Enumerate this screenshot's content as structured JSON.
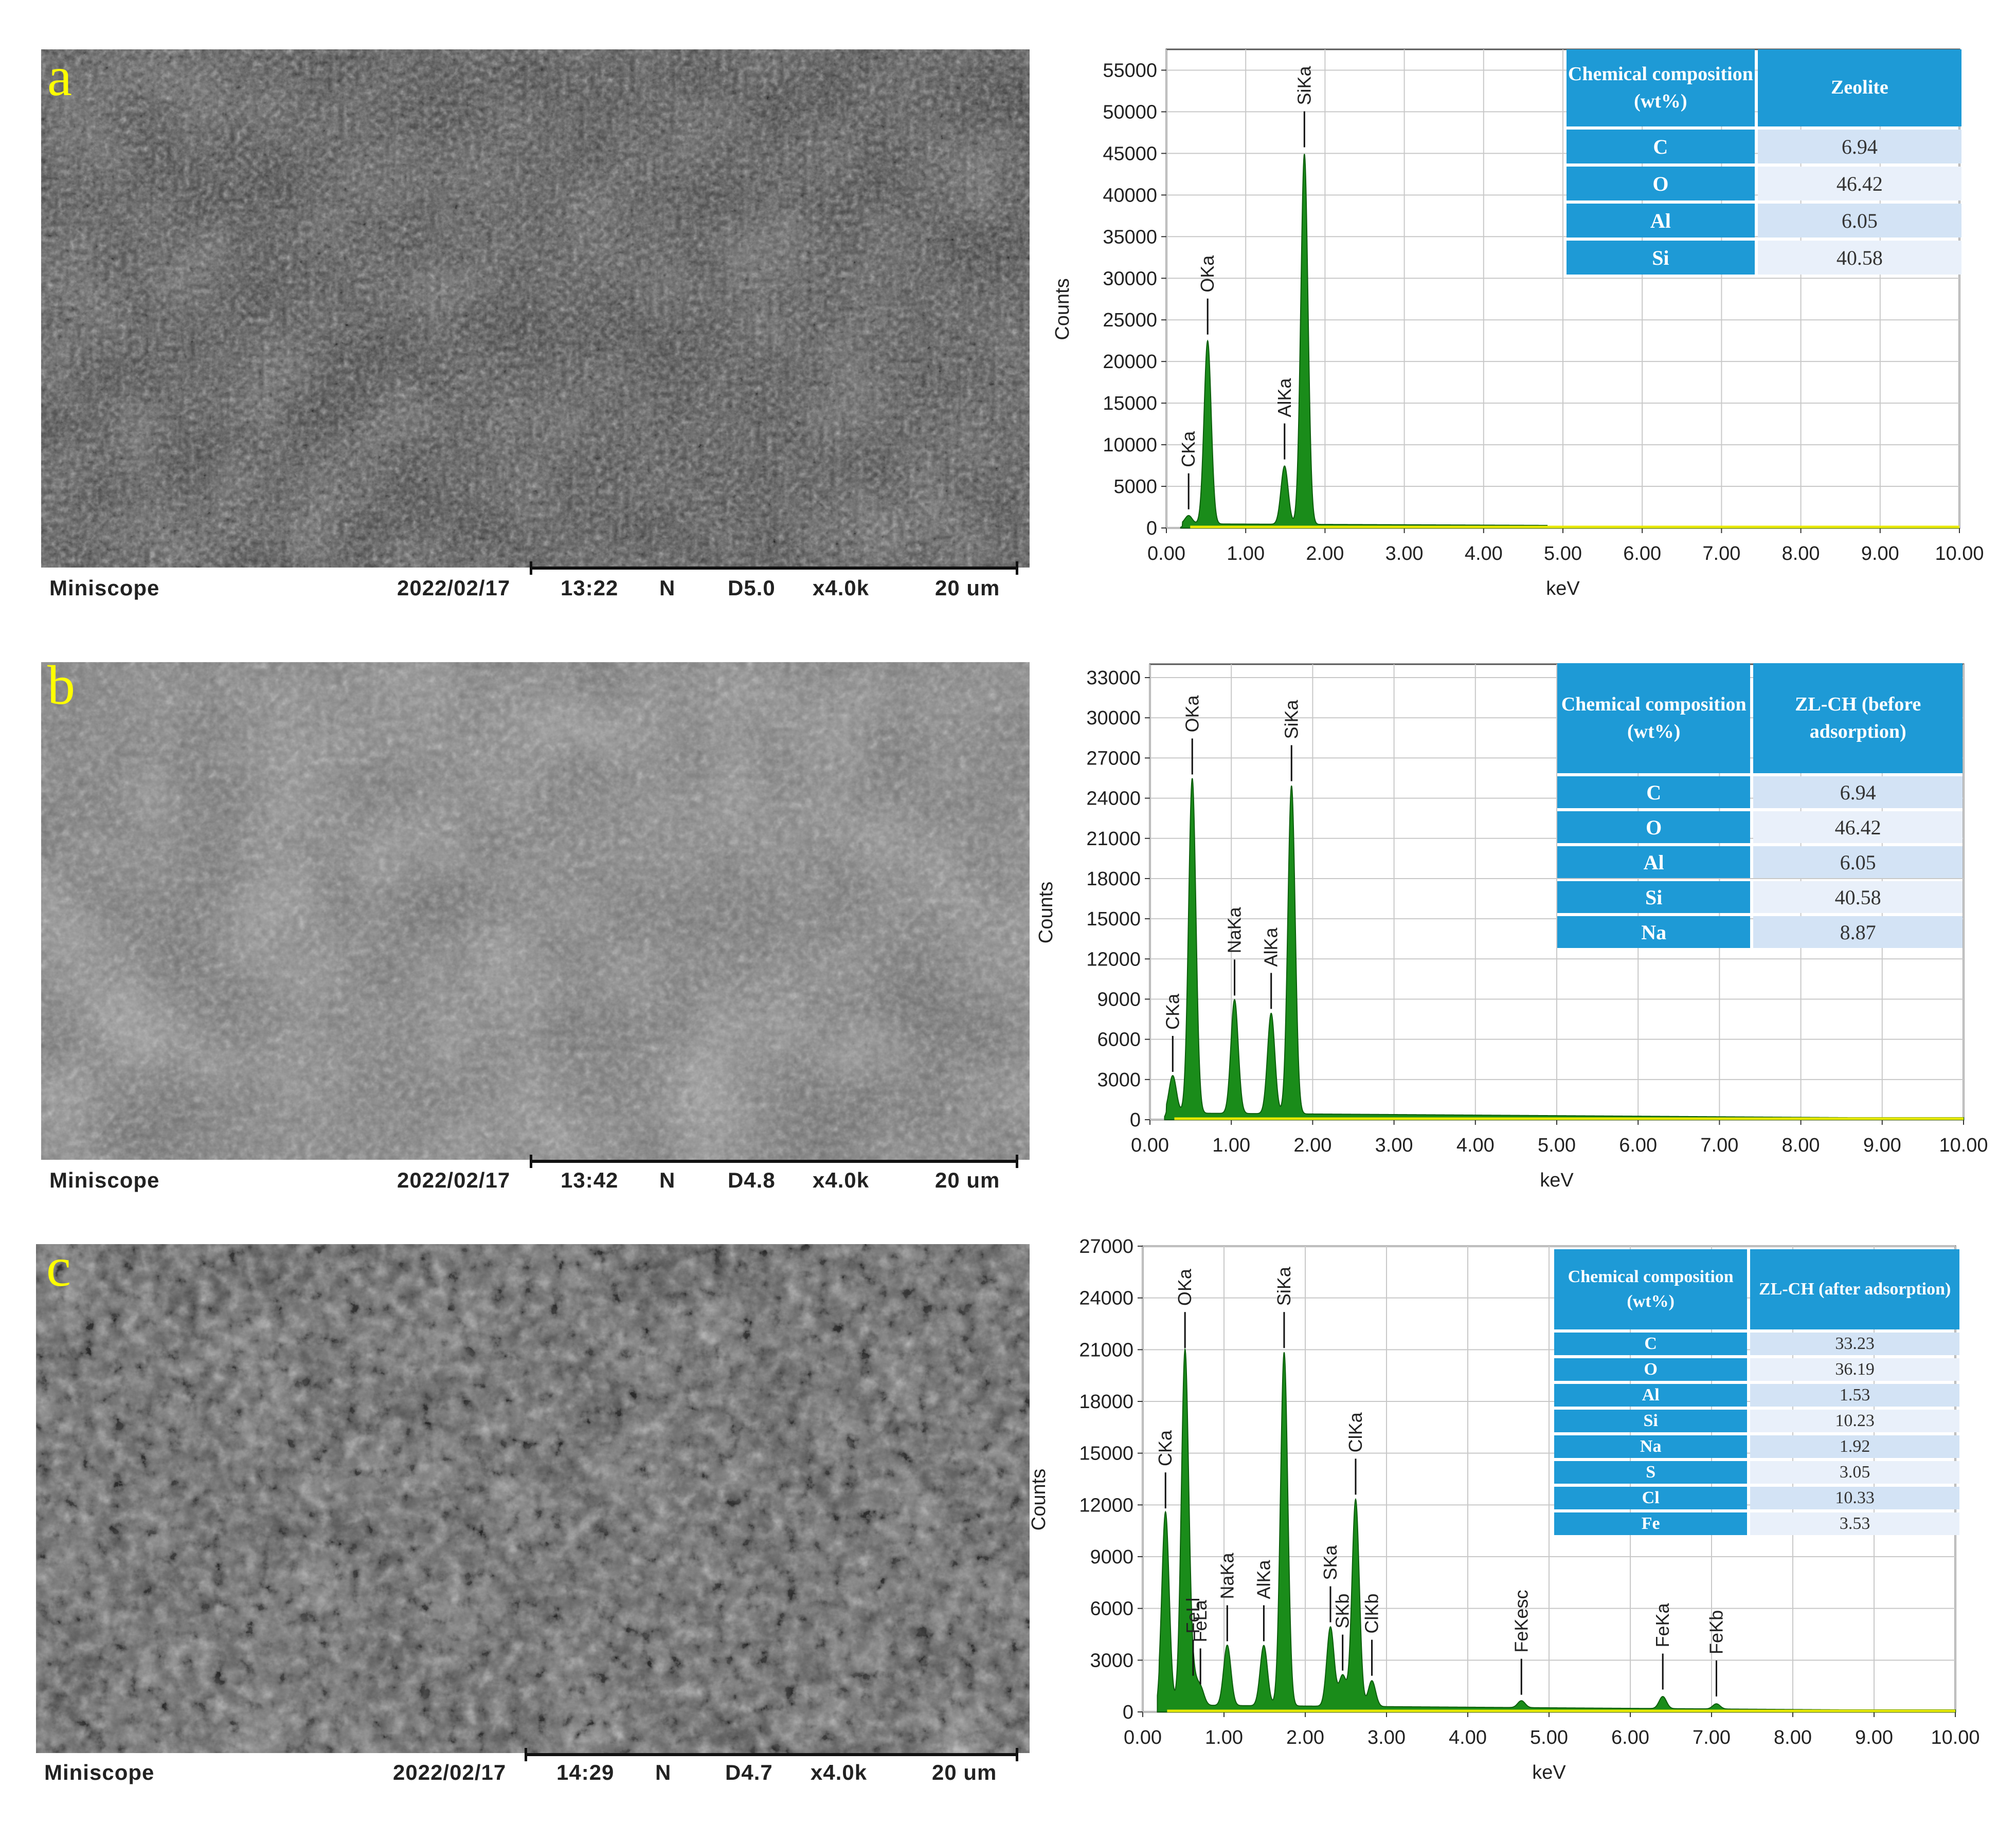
{
  "panels": [
    {
      "letter": "a",
      "sem_footer": {
        "brand": "Miniscope",
        "date": "2022/02/17",
        "time": "13:22",
        "mode": "N",
        "wd": "D5.0",
        "mag": "x4.0k",
        "scale": "20 um"
      },
      "table": {
        "header": [
          "Chemical composition (wt%)",
          "Zeolite"
        ],
        "rows": [
          [
            "C",
            "6.94"
          ],
          [
            "O",
            "46.42"
          ],
          [
            "Al",
            "6.05"
          ],
          [
            "Si",
            "40.58"
          ]
        ]
      }
    },
    {
      "letter": "b",
      "sem_footer": {
        "brand": "Miniscope",
        "date": "2022/02/17",
        "time": "13:42",
        "mode": "N",
        "wd": "D4.8",
        "mag": "x4.0k",
        "scale": "20 um"
      },
      "table": {
        "header": [
          "Chemical composition (wt%)",
          "ZL-CH (before adsorption)"
        ],
        "rows": [
          [
            "C",
            "6.94"
          ],
          [
            "O",
            "46.42"
          ],
          [
            "Al",
            "6.05"
          ],
          [
            "Si",
            "40.58"
          ],
          [
            "Na",
            "8.87"
          ]
        ]
      }
    },
    {
      "letter": "c",
      "sem_footer": {
        "brand": "Miniscope",
        "date": "2022/02/17",
        "time": "14:29",
        "mode": "N",
        "wd": "D4.7",
        "mag": "x4.0k",
        "scale": "20 um"
      },
      "table": {
        "header": [
          "Chemical composition (wt%)",
          "ZL-CH (after adsorption)"
        ],
        "rows": [
          [
            "C",
            "33.23"
          ],
          [
            "O",
            "36.19"
          ],
          [
            "Al",
            "1.53"
          ],
          [
            "Si",
            "10.23"
          ],
          [
            "Na",
            "1.92"
          ],
          [
            "S",
            "3.05"
          ],
          [
            "Cl",
            "10.33"
          ],
          [
            "Fe",
            "3.53"
          ]
        ]
      }
    }
  ],
  "chart_data": [
    {
      "type": "line",
      "xlabel": "keV",
      "ylabel": "Counts",
      "xlim": [
        0,
        10
      ],
      "ylim": [
        0,
        57500
      ],
      "xticks": [
        "0.00",
        "1.00",
        "2.00",
        "3.00",
        "4.00",
        "5.00",
        "6.00",
        "7.00",
        "8.00",
        "9.00",
        "10.00"
      ],
      "yticks": [
        0,
        5000,
        10000,
        15000,
        20000,
        25000,
        30000,
        35000,
        40000,
        45000,
        50000,
        55000
      ],
      "grid": true,
      "peaks": [
        {
          "label": "CKa",
          "kev": 0.28,
          "counts": 1000
        },
        {
          "label": "OKa",
          "kev": 0.52,
          "counts": 22000
        },
        {
          "label": "AlKa",
          "kev": 1.49,
          "counts": 7000
        },
        {
          "label": "SiKa",
          "kev": 1.74,
          "counts": 44500
        }
      ],
      "background": {
        "level": 500,
        "end_kev": 4.8
      }
    },
    {
      "type": "line",
      "xlabel": "keV",
      "ylabel": "Counts",
      "xlim": [
        0,
        10
      ],
      "ylim": [
        0,
        34000
      ],
      "xticks": [
        "0.00",
        "1.00",
        "2.00",
        "3.00",
        "4.00",
        "5.00",
        "6.00",
        "7.00",
        "8.00",
        "9.00",
        "10.00"
      ],
      "yticks": [
        0,
        3000,
        6000,
        9000,
        12000,
        15000,
        18000,
        21000,
        24000,
        27000,
        30000,
        33000
      ],
      "grid": true,
      "peaks": [
        {
          "label": "CKa",
          "kev": 0.28,
          "counts": 2800
        },
        {
          "label": "OKa",
          "kev": 0.52,
          "counts": 25000
        },
        {
          "label": "NaKa",
          "kev": 1.04,
          "counts": 8500
        },
        {
          "label": "AlKa",
          "kev": 1.49,
          "counts": 7500
        },
        {
          "label": "SiKa",
          "kev": 1.74,
          "counts": 24500
        }
      ],
      "background": {
        "level": 500,
        "end_kev": 10
      }
    },
    {
      "type": "line",
      "xlabel": "keV",
      "ylabel": "Counts",
      "xlim": [
        0,
        10
      ],
      "ylim": [
        0,
        27000
      ],
      "xticks": [
        "0.00",
        "1.00",
        "2.00",
        "3.00",
        "4.00",
        "5.00",
        "6.00",
        "7.00",
        "8.00",
        "9.00",
        "10.00"
      ],
      "yticks": [
        0,
        3000,
        6000,
        9000,
        12000,
        15000,
        18000,
        21000,
        24000,
        27000
      ],
      "grid": true,
      "peaks": [
        {
          "label": "CKa",
          "kev": 0.28,
          "counts": 11200
        },
        {
          "label": "OKa",
          "kev": 0.52,
          "counts": 20500
        },
        {
          "label": "FeLl",
          "kev": 0.62,
          "counts": 1500
        },
        {
          "label": "FeLa",
          "kev": 0.71,
          "counts": 1000
        },
        {
          "label": "NaKa",
          "kev": 1.04,
          "counts": 3500
        },
        {
          "label": "AlKa",
          "kev": 1.49,
          "counts": 3500
        },
        {
          "label": "SiKa",
          "kev": 1.74,
          "counts": 20500
        },
        {
          "label": "SKa",
          "kev": 2.31,
          "counts": 4600
        },
        {
          "label": "SKb",
          "kev": 2.46,
          "counts": 1800
        },
        {
          "label": "ClKa",
          "kev": 2.62,
          "counts": 12000
        },
        {
          "label": "ClKb",
          "kev": 2.82,
          "counts": 1500
        },
        {
          "label": "FeKesc",
          "kev": 4.66,
          "counts": 400
        },
        {
          "label": "FeKa",
          "kev": 6.4,
          "counts": 700
        },
        {
          "label": "FeKb",
          "kev": 7.06,
          "counts": 300
        }
      ],
      "background": {
        "level": 400,
        "end_kev": 10
      }
    }
  ],
  "colors": {
    "peak_fill": "#1a8c1a",
    "baseline": "#e8e800",
    "table_head": "#1e9ad6",
    "label_yellow": "#ffff00"
  }
}
